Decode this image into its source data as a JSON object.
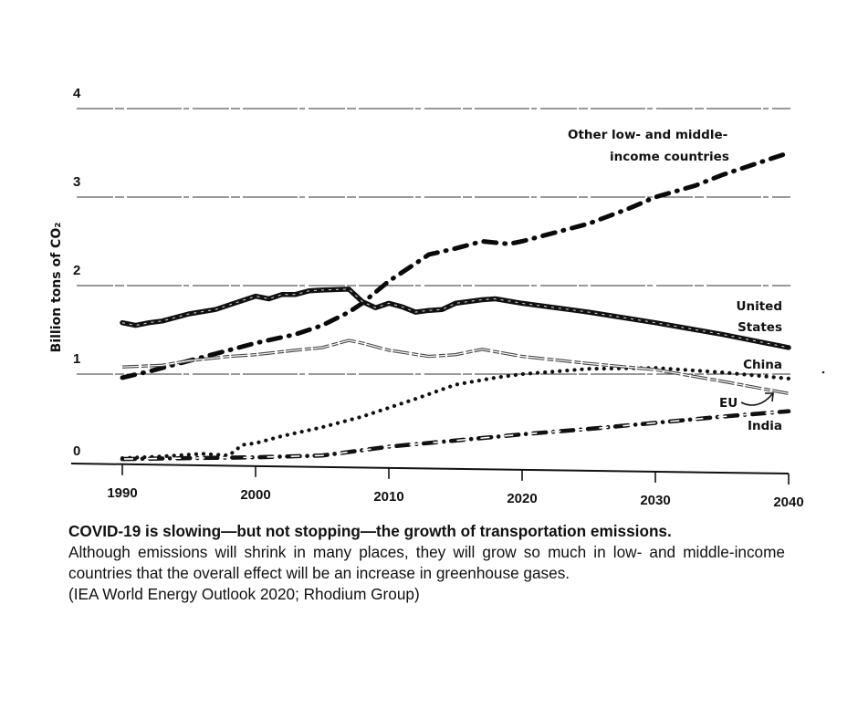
{
  "chart_data": {
    "type": "line",
    "title": "",
    "xlabel": "",
    "ylabel": "Billion tons of CO₂",
    "xlim": [
      1990,
      2040
    ],
    "ylim": [
      0,
      4
    ],
    "x_ticks": [
      1990,
      2000,
      2010,
      2020,
      2030,
      2040
    ],
    "y_ticks": [
      0,
      1,
      2,
      3,
      4
    ],
    "grid": "horizontal",
    "legend": "inline-labels-right",
    "series": [
      {
        "name": "Other low- and middle-income countries",
        "label_lines": [
          "Other low- and middle-",
          "income countries"
        ],
        "style": "dash-dot-heavy",
        "points": [
          [
            1990,
            0.96
          ],
          [
            1992,
            1.03
          ],
          [
            1995,
            1.15
          ],
          [
            1998,
            1.27
          ],
          [
            2000,
            1.35
          ],
          [
            2003,
            1.45
          ],
          [
            2005,
            1.55
          ],
          [
            2007,
            1.7
          ],
          [
            2008,
            1.8
          ],
          [
            2010,
            2.05
          ],
          [
            2012,
            2.25
          ],
          [
            2013,
            2.35
          ],
          [
            2015,
            2.42
          ],
          [
            2017,
            2.5
          ],
          [
            2019,
            2.47
          ],
          [
            2020,
            2.5
          ],
          [
            2022,
            2.58
          ],
          [
            2025,
            2.7
          ],
          [
            2028,
            2.87
          ],
          [
            2030,
            3.0
          ],
          [
            2033,
            3.13
          ],
          [
            2035,
            3.25
          ],
          [
            2038,
            3.4
          ],
          [
            2040,
            3.5
          ]
        ]
      },
      {
        "name": "United States",
        "label_lines": [
          "United",
          "States"
        ],
        "style": "solid-heavy",
        "points": [
          [
            1990,
            1.58
          ],
          [
            1991,
            1.55
          ],
          [
            1992,
            1.58
          ],
          [
            1993,
            1.6
          ],
          [
            1995,
            1.68
          ],
          [
            1997,
            1.73
          ],
          [
            1998,
            1.78
          ],
          [
            2000,
            1.88
          ],
          [
            2001,
            1.85
          ],
          [
            2002,
            1.9
          ],
          [
            2003,
            1.9
          ],
          [
            2004,
            1.94
          ],
          [
            2005,
            1.95
          ],
          [
            2007,
            1.96
          ],
          [
            2008,
            1.82
          ],
          [
            2009,
            1.75
          ],
          [
            2010,
            1.8
          ],
          [
            2011,
            1.76
          ],
          [
            2012,
            1.7
          ],
          [
            2013,
            1.72
          ],
          [
            2014,
            1.73
          ],
          [
            2015,
            1.8
          ],
          [
            2017,
            1.84
          ],
          [
            2018,
            1.85
          ],
          [
            2020,
            1.8
          ],
          [
            2025,
            1.7
          ],
          [
            2030,
            1.58
          ],
          [
            2035,
            1.45
          ],
          [
            2040,
            1.3
          ]
        ]
      },
      {
        "name": "China",
        "label_lines": [
          "China"
        ],
        "style": "dotted",
        "points": [
          [
            1990,
            0.05
          ],
          [
            1993,
            0.07
          ],
          [
            1996,
            0.1
          ],
          [
            1998,
            0.08
          ],
          [
            1999,
            0.2
          ],
          [
            2000,
            0.22
          ],
          [
            2002,
            0.3
          ],
          [
            2005,
            0.4
          ],
          [
            2008,
            0.52
          ],
          [
            2010,
            0.62
          ],
          [
            2012,
            0.72
          ],
          [
            2015,
            0.88
          ],
          [
            2018,
            0.96
          ],
          [
            2020,
            1.0
          ],
          [
            2025,
            1.06
          ],
          [
            2030,
            1.07
          ],
          [
            2035,
            1.02
          ],
          [
            2040,
            0.95
          ]
        ]
      },
      {
        "name": "EU",
        "label_lines": [
          "EU"
        ],
        "style": "double-thin",
        "points": [
          [
            1990,
            1.08
          ],
          [
            1993,
            1.1
          ],
          [
            1995,
            1.15
          ],
          [
            1998,
            1.2
          ],
          [
            2000,
            1.22
          ],
          [
            2003,
            1.27
          ],
          [
            2005,
            1.3
          ],
          [
            2007,
            1.38
          ],
          [
            2008,
            1.35
          ],
          [
            2010,
            1.27
          ],
          [
            2013,
            1.2
          ],
          [
            2015,
            1.22
          ],
          [
            2017,
            1.28
          ],
          [
            2020,
            1.2
          ],
          [
            2025,
            1.12
          ],
          [
            2030,
            1.05
          ],
          [
            2035,
            0.92
          ],
          [
            2040,
            0.78
          ]
        ]
      },
      {
        "name": "India",
        "label_lines": [
          "India"
        ],
        "style": "dash-dot-outline",
        "points": [
          [
            1990,
            0.04
          ],
          [
            1995,
            0.05
          ],
          [
            2000,
            0.06
          ],
          [
            2005,
            0.08
          ],
          [
            2007,
            0.12
          ],
          [
            2010,
            0.18
          ],
          [
            2015,
            0.25
          ],
          [
            2020,
            0.32
          ],
          [
            2025,
            0.38
          ],
          [
            2030,
            0.45
          ],
          [
            2035,
            0.52
          ],
          [
            2040,
            0.58
          ]
        ]
      }
    ]
  },
  "caption": {
    "title": "COVID-19 is slowing—but not stopping—the growth of transportation emissions.",
    "body": "Although emissions will shrink in many places, they will grow so much in low- and middle-income countries that the overall effect will be an increase in greenhouse gases.",
    "source": "(IEA World Energy Outlook 2020; Rhodium Group)"
  }
}
